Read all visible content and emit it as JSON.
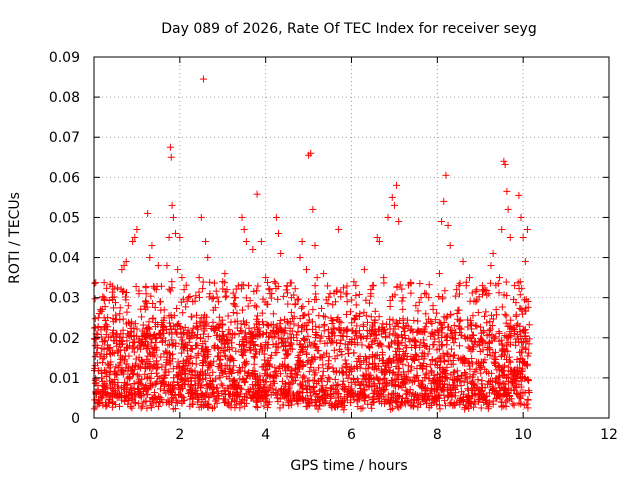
{
  "chart_data": {
    "type": "scatter",
    "title": "Day 089 of 2026, Rate Of TEC Index for receiver seyg",
    "xlabel": "GPS time / hours",
    "ylabel": "ROTI / TECUs",
    "xlim": [
      0,
      12
    ],
    "ylim": [
      0,
      0.09
    ],
    "x_ticks": [
      "0",
      "2",
      "4",
      "6",
      "8",
      "10",
      "12"
    ],
    "y_ticks": [
      "0",
      "0.01",
      "0.02",
      "0.03",
      "0.04",
      "0.05",
      "0.06",
      "0.07",
      "0.08",
      "0.09"
    ],
    "grid": true,
    "marker": "+",
    "color": "#ff0000",
    "series": [
      {
        "name": "ROTI",
        "points": [
          [
            0.05,
            0.021
          ],
          [
            0.1,
            0.025
          ],
          [
            0.15,
            0.027
          ],
          [
            0.2,
            0.019
          ],
          [
            0.3,
            0.022
          ],
          [
            0.45,
            0.024
          ],
          [
            0.6,
            0.026
          ],
          [
            0.65,
            0.037
          ],
          [
            0.7,
            0.038
          ],
          [
            0.75,
            0.039
          ],
          [
            0.8,
            0.028
          ],
          [
            0.9,
            0.044
          ],
          [
            0.95,
            0.045
          ],
          [
            1.0,
            0.047
          ],
          [
            1.05,
            0.031
          ],
          [
            1.2,
            0.029
          ],
          [
            1.25,
            0.051
          ],
          [
            1.3,
            0.04
          ],
          [
            1.35,
            0.043
          ],
          [
            1.45,
            0.032
          ],
          [
            1.5,
            0.038
          ],
          [
            1.55,
            0.029
          ],
          [
            1.7,
            0.038
          ],
          [
            1.75,
            0.045
          ],
          [
            1.78,
            0.0675
          ],
          [
            1.8,
            0.065
          ],
          [
            1.82,
            0.053
          ],
          [
            1.85,
            0.05
          ],
          [
            1.9,
            0.046
          ],
          [
            1.95,
            0.037
          ],
          [
            2.0,
            0.045
          ],
          [
            2.05,
            0.035
          ],
          [
            2.1,
            0.032
          ],
          [
            2.2,
            0.03
          ],
          [
            2.3,
            0.029
          ],
          [
            2.45,
            0.035
          ],
          [
            2.5,
            0.05
          ],
          [
            2.55,
            0.0845
          ],
          [
            2.6,
            0.044
          ],
          [
            2.65,
            0.04
          ],
          [
            2.7,
            0.031
          ],
          [
            2.9,
            0.029
          ],
          [
            3.0,
            0.034
          ],
          [
            3.05,
            0.036
          ],
          [
            3.1,
            0.032
          ],
          [
            3.3,
            0.03
          ],
          [
            3.45,
            0.05
          ],
          [
            3.5,
            0.047
          ],
          [
            3.55,
            0.044
          ],
          [
            3.6,
            0.033
          ],
          [
            3.7,
            0.042
          ],
          [
            3.8,
            0.0558
          ],
          [
            3.9,
            0.044
          ],
          [
            4.0,
            0.035
          ],
          [
            4.1,
            0.031
          ],
          [
            4.2,
            0.034
          ],
          [
            4.25,
            0.05
          ],
          [
            4.3,
            0.046
          ],
          [
            4.35,
            0.041
          ],
          [
            4.5,
            0.033
          ],
          [
            4.6,
            0.03
          ],
          [
            4.8,
            0.04
          ],
          [
            4.85,
            0.044
          ],
          [
            4.95,
            0.037
          ],
          [
            5.0,
            0.0655
          ],
          [
            5.05,
            0.066
          ],
          [
            5.1,
            0.052
          ],
          [
            5.15,
            0.043
          ],
          [
            5.2,
            0.035
          ],
          [
            5.35,
            0.036
          ],
          [
            5.5,
            0.031
          ],
          [
            5.7,
            0.047
          ],
          [
            5.9,
            0.029
          ],
          [
            6.1,
            0.033
          ],
          [
            6.3,
            0.037
          ],
          [
            6.45,
            0.031
          ],
          [
            6.6,
            0.045
          ],
          [
            6.65,
            0.044
          ],
          [
            6.75,
            0.035
          ],
          [
            6.85,
            0.05
          ],
          [
            6.95,
            0.055
          ],
          [
            7.0,
            0.053
          ],
          [
            7.05,
            0.058
          ],
          [
            7.1,
            0.049
          ],
          [
            7.2,
            0.03
          ],
          [
            7.5,
            0.028
          ],
          [
            7.8,
            0.03
          ],
          [
            7.9,
            0.028
          ],
          [
            8.05,
            0.036
          ],
          [
            8.1,
            0.049
          ],
          [
            8.15,
            0.054
          ],
          [
            8.2,
            0.0605
          ],
          [
            8.25,
            0.048
          ],
          [
            8.3,
            0.043
          ],
          [
            8.45,
            0.032
          ],
          [
            8.6,
            0.039
          ],
          [
            8.75,
            0.035
          ],
          [
            8.9,
            0.029
          ],
          [
            9.05,
            0.033
          ],
          [
            9.2,
            0.031
          ],
          [
            9.25,
            0.038
          ],
          [
            9.3,
            0.041
          ],
          [
            9.45,
            0.035
          ],
          [
            9.5,
            0.047
          ],
          [
            9.55,
            0.064
          ],
          [
            9.58,
            0.0632
          ],
          [
            9.62,
            0.0565
          ],
          [
            9.65,
            0.052
          ],
          [
            9.7,
            0.045
          ],
          [
            9.8,
            0.033
          ],
          [
            9.9,
            0.0555
          ],
          [
            9.95,
            0.05
          ],
          [
            10.0,
            0.045
          ],
          [
            10.05,
            0.039
          ],
          [
            10.1,
            0.047
          ]
        ]
      }
    ],
    "dense_band": {
      "x_range": [
        0,
        10.15
      ],
      "y_floor": 0.002,
      "y_typical_max": 0.022,
      "note": "dense cloud of points between 0.002 and ~0.022 TECU across 0-10.15 h"
    }
  }
}
